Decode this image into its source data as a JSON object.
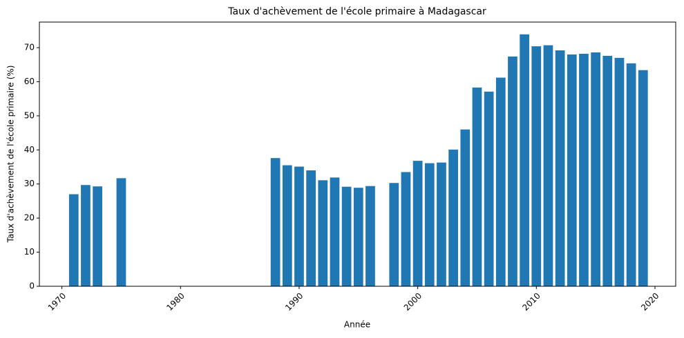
{
  "chart_data": {
    "type": "bar",
    "title": "Taux d'achèvement de l'école primaire à Madagascar",
    "xlabel": "Année",
    "ylabel": "Taux d'achèvement de l'école primaire (%)",
    "x": [
      1971,
      1972,
      1973,
      1975,
      1988,
      1989,
      1990,
      1991,
      1992,
      1993,
      1994,
      1995,
      1996,
      1998,
      1999,
      2000,
      2001,
      2002,
      2003,
      2004,
      2005,
      2006,
      2007,
      2008,
      2009,
      2010,
      2011,
      2012,
      2013,
      2014,
      2015,
      2016,
      2017,
      2018,
      2019
    ],
    "values": [
      27.0,
      29.7,
      29.3,
      31.7,
      37.6,
      35.5,
      35.1,
      34.0,
      31.1,
      31.9,
      29.2,
      28.9,
      29.4,
      30.3,
      33.5,
      36.8,
      36.1,
      36.3,
      40.1,
      46.0,
      58.3,
      57.1,
      61.2,
      67.4,
      73.9,
      70.4,
      70.7,
      69.2,
      68.0,
      68.2,
      68.6,
      67.6,
      67.0,
      65.4,
      63.4
    ],
    "color": "#1f77b4",
    "xlim": [
      1968.1,
      2021.75
    ],
    "xticks": [
      1970,
      1980,
      1990,
      2000,
      2010,
      2020
    ],
    "ylim": [
      0,
      77.5
    ],
    "yticks": [
      0,
      10,
      20,
      30,
      40,
      50,
      60,
      70
    ],
    "grid": false
  }
}
